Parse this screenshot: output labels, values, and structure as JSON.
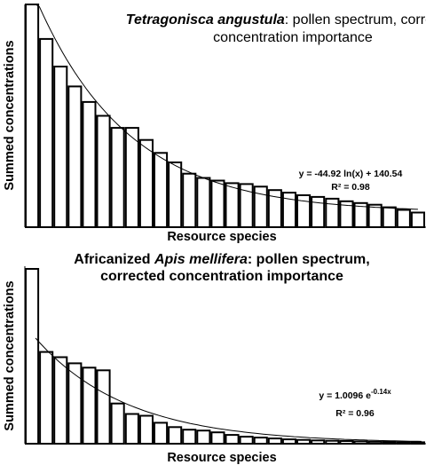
{
  "chart_data": [
    {
      "type": "bar",
      "title_bold_italic": "Tetragonisca angustula",
      "title_rest_line1": ": pollen spectrum, corrected",
      "title_line2": "concentration importance",
      "xlabel": "Resource species",
      "ylabel": "Summed concentrations",
      "values": [
        258,
        218,
        186,
        163,
        145,
        129,
        115,
        115,
        101,
        86,
        75,
        62,
        57,
        54,
        51,
        50,
        47,
        43,
        40,
        37,
        35,
        33,
        30,
        28,
        26,
        23,
        20,
        17
      ],
      "ylim": [
        0,
        258
      ],
      "trendline": {
        "type": "logarithmic",
        "a": -44.92,
        "b": 140.54
      },
      "equation": "y = -44.92 ln(x) + 140.54",
      "r2": "R² = 0.98"
    },
    {
      "type": "bar",
      "title_line1_plain": "Africanized ",
      "title_line1_italic": "Apis mellifera",
      "title_line1_rest": ": pollen spectrum,",
      "title_line2": "corrected concentration importance",
      "xlabel": "Resource species",
      "ylabel": "Summed concentrations",
      "values": [
        1.0,
        0.525,
        0.495,
        0.46,
        0.435,
        0.42,
        0.23,
        0.17,
        0.16,
        0.12,
        0.095,
        0.08,
        0.075,
        0.065,
        0.05,
        0.04,
        0.035,
        0.03,
        0.025,
        0.022,
        0.019,
        0.017,
        0.015,
        0.013,
        0.011,
        0.01,
        0.009,
        0.008
      ],
      "ylim": [
        0,
        1.0
      ],
      "trendline": {
        "type": "exponential",
        "a": 1.0096,
        "k": -0.14
      },
      "equation_base": "y = 1.0096 e",
      "equation_exp": "-0.14x",
      "r2": "R² = 0.96"
    }
  ]
}
